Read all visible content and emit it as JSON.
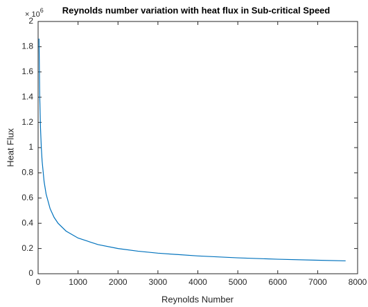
{
  "chart_data": {
    "type": "line",
    "title": "Reynolds number variation with heat flux in Sub-critical Speed",
    "xlabel": "Reynolds Number",
    "ylabel": "Heat Flux",
    "y_exponent_base": "× 10",
    "y_exponent_power": "6",
    "x": [
      23,
      40,
      60,
      80,
      100,
      150,
      200,
      300,
      400,
      500,
      700,
      1000,
      1500,
      2000,
      2500,
      3000,
      4000,
      5000,
      6000,
      7000,
      7700
    ],
    "series": [
      {
        "name": "Heat Flux",
        "color": "#0072bd",
        "values": [
          1.864,
          1.414,
          1.154,
          1.0,
          0.894,
          0.73,
          0.632,
          0.516,
          0.447,
          0.4,
          0.338,
          0.283,
          0.231,
          0.2,
          0.179,
          0.163,
          0.141,
          0.126,
          0.115,
          0.107,
          0.102
        ]
      }
    ],
    "xlim": [
      0,
      8000
    ],
    "xticks": [
      0,
      1000,
      2000,
      3000,
      4000,
      5000,
      6000,
      7000,
      8000
    ],
    "ylim": [
      0,
      2
    ],
    "yticks": [
      0,
      0.2,
      0.4,
      0.6,
      0.8,
      1,
      1.2,
      1.4,
      1.6,
      1.8,
      2
    ],
    "grid": false
  }
}
